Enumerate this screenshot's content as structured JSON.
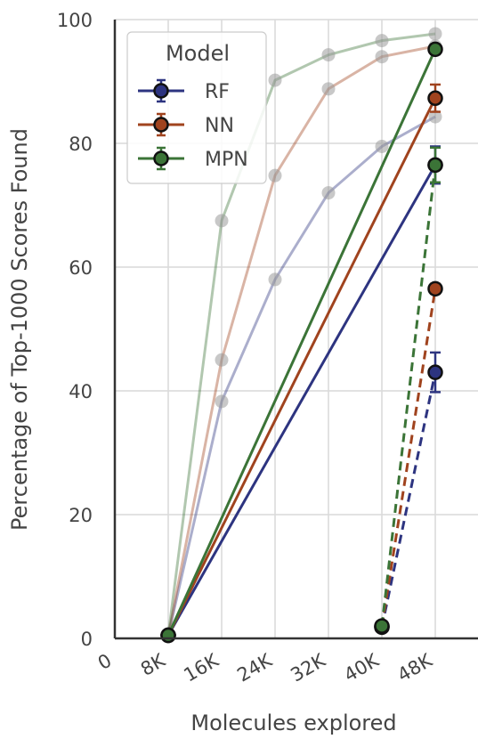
{
  "chart_data": {
    "type": "line",
    "title": "",
    "xlabel": "Molecules explored",
    "ylabel": "Percentage of Top-1000 Scores Found",
    "xlim": [
      0,
      50000
    ],
    "ylim": [
      0,
      100
    ],
    "x_ticks": [
      0,
      8000,
      16000,
      24000,
      32000,
      40000,
      48000
    ],
    "x_tick_labels": [
      "0",
      "8K",
      "16K",
      "24K",
      "32K",
      "40K",
      "48K"
    ],
    "y_ticks": [
      0,
      20,
      40,
      60,
      80,
      100
    ],
    "y_tick_labels": [
      "0",
      "20",
      "40",
      "60",
      "80",
      "100"
    ],
    "grid": true,
    "legend": {
      "title": "Model",
      "placement": "top-left",
      "entries": [
        "RF",
        "NN",
        "MPN"
      ]
    },
    "colors": {
      "RF": "#2d3480",
      "NN": "#a0431e",
      "MPN": "#3b7437"
    },
    "series": [
      {
        "name": "RF",
        "style": "faded",
        "x": [
          8000,
          16000,
          24000,
          32000,
          40000,
          48000
        ],
        "y": [
          0.5,
          38.3,
          58.0,
          72.0,
          79.5,
          84.3
        ]
      },
      {
        "name": "NN",
        "style": "faded",
        "x": [
          8000,
          16000,
          24000,
          32000,
          40000,
          48000
        ],
        "y": [
          0.5,
          45.0,
          74.8,
          88.8,
          94.0,
          95.7
        ]
      },
      {
        "name": "MPN",
        "style": "faded",
        "x": [
          8000,
          16000,
          24000,
          32000,
          40000,
          48000
        ],
        "y": [
          0.5,
          67.5,
          90.2,
          94.3,
          96.6,
          97.7
        ]
      },
      {
        "name": "RF",
        "style": "solid",
        "x": [
          8000,
          48000
        ],
        "y": [
          0.5,
          76.5
        ],
        "error": [
          0.3,
          3.0
        ]
      },
      {
        "name": "NN",
        "style": "solid",
        "x": [
          8000,
          48000
        ],
        "y": [
          0.5,
          87.3
        ],
        "error": [
          0.3,
          2.2
        ]
      },
      {
        "name": "MPN",
        "style": "solid",
        "x": [
          8000,
          48000
        ],
        "y": [
          0.5,
          95.2
        ],
        "error": [
          0.3,
          0.8
        ]
      },
      {
        "name": "RF",
        "style": "dashed",
        "x": [
          40000,
          48000
        ],
        "y": [
          1.8,
          43.0
        ],
        "error": [
          0.6,
          3.2
        ]
      },
      {
        "name": "NN",
        "style": "dashed",
        "x": [
          40000,
          48000
        ],
        "y": [
          1.9,
          56.5
        ],
        "error": [
          0.6,
          0.8
        ]
      },
      {
        "name": "MPN",
        "style": "dashed",
        "x": [
          40000,
          48000
        ],
        "y": [
          2.0,
          76.5
        ],
        "error": [
          0.6,
          2.8
        ]
      }
    ]
  }
}
